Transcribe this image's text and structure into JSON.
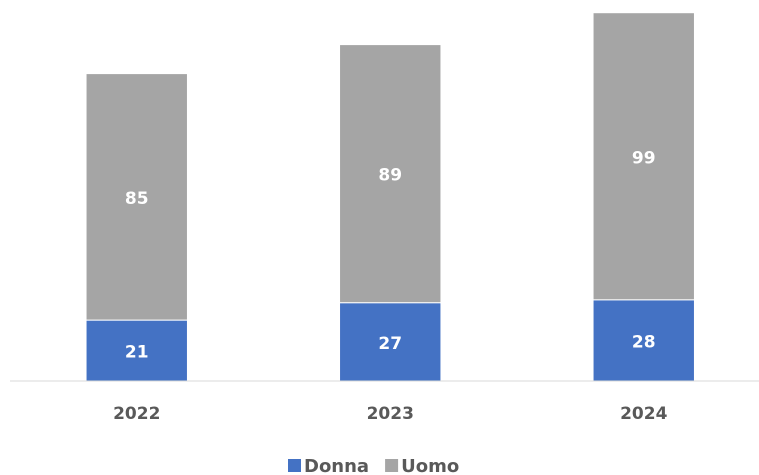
{
  "chart_data": {
    "type": "stacked_bar",
    "categories": [
      "2022",
      "2023",
      "2024"
    ],
    "series": [
      {
        "name": "Donna",
        "color": "#4472c4",
        "values": [
          21,
          27,
          28
        ]
      },
      {
        "name": "Uomo",
        "color": "#a5a5a5",
        "values": [
          85,
          89,
          99
        ]
      }
    ],
    "ylim": [
      0,
      130
    ],
    "legend": "bottom"
  }
}
